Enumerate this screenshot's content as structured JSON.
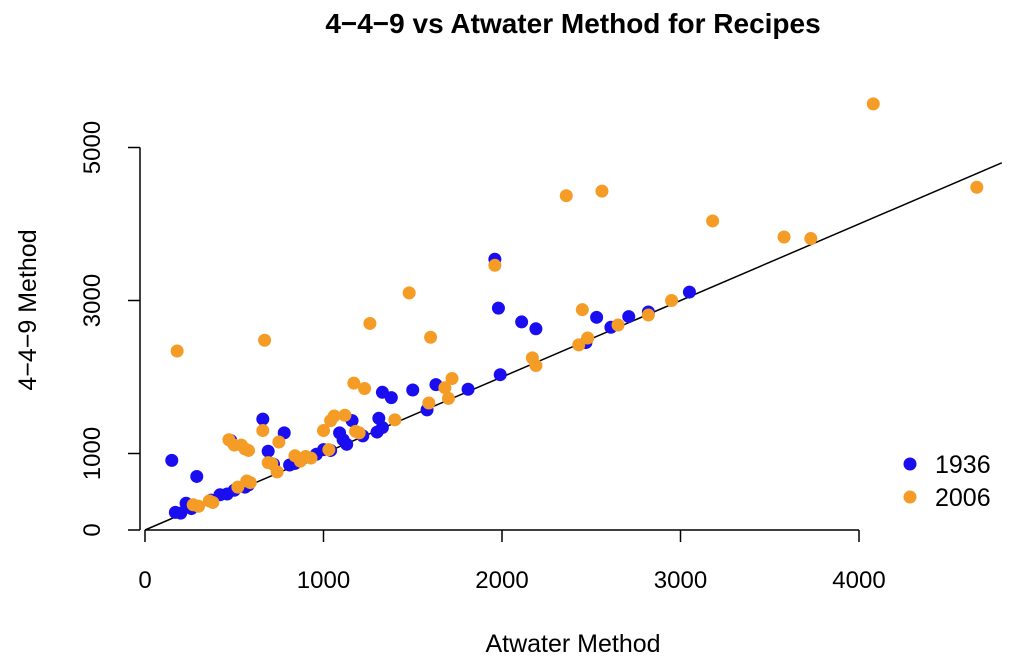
{
  "chart_data": {
    "type": "scatter",
    "title": "4−4−9 vs Atwater Method for Recipes",
    "xlabel": "Atwater Method",
    "ylabel": "4−4−9 Method",
    "xlim": [
      0,
      4800
    ],
    "ylim": [
      0,
      5800
    ],
    "x_ticks": [
      0,
      1000,
      2000,
      3000,
      4000
    ],
    "y_ticks": [
      0,
      1000,
      3000,
      5000
    ],
    "x_tick_labels": [
      "0",
      "1000",
      "2000",
      "3000",
      "4000"
    ],
    "y_tick_labels": [
      "0",
      "1000",
      "3000",
      "5000"
    ],
    "grid": false,
    "legend_position": "bottom-right",
    "reference_line": {
      "slope": 1,
      "intercept": 0
    },
    "series": [
      {
        "name": "1936",
        "color": "#1a0df0",
        "points": [
          [
            150,
            910
          ],
          [
            170,
            230
          ],
          [
            200,
            220
          ],
          [
            230,
            350
          ],
          [
            260,
            280
          ],
          [
            290,
            700
          ],
          [
            370,
            390
          ],
          [
            420,
            460
          ],
          [
            460,
            470
          ],
          [
            480,
            1170
          ],
          [
            500,
            520
          ],
          [
            560,
            560
          ],
          [
            580,
            590
          ],
          [
            660,
            1450
          ],
          [
            690,
            1030
          ],
          [
            720,
            860
          ],
          [
            780,
            1270
          ],
          [
            810,
            850
          ],
          [
            840,
            870
          ],
          [
            880,
            930
          ],
          [
            960,
            990
          ],
          [
            1000,
            1050
          ],
          [
            1040,
            1040
          ],
          [
            1090,
            1270
          ],
          [
            1110,
            1180
          ],
          [
            1130,
            1120
          ],
          [
            1160,
            1430
          ],
          [
            1220,
            1230
          ],
          [
            1300,
            1280
          ],
          [
            1310,
            1460
          ],
          [
            1330,
            1340
          ],
          [
            1330,
            1800
          ],
          [
            1380,
            1730
          ],
          [
            1500,
            1830
          ],
          [
            1580,
            1570
          ],
          [
            1630,
            1900
          ],
          [
            1810,
            1840
          ],
          [
            1960,
            3540
          ],
          [
            1980,
            2900
          ],
          [
            1990,
            2030
          ],
          [
            2110,
            2720
          ],
          [
            2190,
            2630
          ],
          [
            2470,
            2450
          ],
          [
            2530,
            2780
          ],
          [
            2610,
            2650
          ],
          [
            2710,
            2790
          ],
          [
            2820,
            2850
          ],
          [
            3050,
            3110
          ]
        ]
      },
      {
        "name": "2006",
        "color": "#f49c25",
        "points": [
          [
            180,
            2340
          ],
          [
            270,
            330
          ],
          [
            300,
            310
          ],
          [
            360,
            380
          ],
          [
            380,
            360
          ],
          [
            470,
            1180
          ],
          [
            500,
            1110
          ],
          [
            520,
            560
          ],
          [
            540,
            1110
          ],
          [
            560,
            1060
          ],
          [
            570,
            640
          ],
          [
            580,
            1040
          ],
          [
            590,
            620
          ],
          [
            660,
            1300
          ],
          [
            670,
            2480
          ],
          [
            690,
            880
          ],
          [
            710,
            870
          ],
          [
            740,
            760
          ],
          [
            750,
            1150
          ],
          [
            840,
            970
          ],
          [
            870,
            900
          ],
          [
            900,
            960
          ],
          [
            930,
            940
          ],
          [
            1000,
            1300
          ],
          [
            1030,
            1050
          ],
          [
            1040,
            1430
          ],
          [
            1060,
            1490
          ],
          [
            1120,
            1500
          ],
          [
            1170,
            1920
          ],
          [
            1180,
            1290
          ],
          [
            1200,
            1270
          ],
          [
            1230,
            1850
          ],
          [
            1260,
            2700
          ],
          [
            1400,
            1440
          ],
          [
            1480,
            3100
          ],
          [
            1590,
            1660
          ],
          [
            1600,
            2520
          ],
          [
            1680,
            1860
          ],
          [
            1700,
            1720
          ],
          [
            1720,
            1980
          ],
          [
            1960,
            3460
          ],
          [
            2170,
            2250
          ],
          [
            2190,
            2150
          ],
          [
            2360,
            4370
          ],
          [
            2430,
            2420
          ],
          [
            2450,
            2880
          ],
          [
            2480,
            2510
          ],
          [
            2560,
            4430
          ],
          [
            2650,
            2680
          ],
          [
            2820,
            2810
          ],
          [
            2950,
            3000
          ],
          [
            3180,
            4040
          ],
          [
            3580,
            3830
          ],
          [
            3730,
            3810
          ],
          [
            4080,
            5570
          ],
          [
            4660,
            4480
          ]
        ]
      }
    ]
  }
}
